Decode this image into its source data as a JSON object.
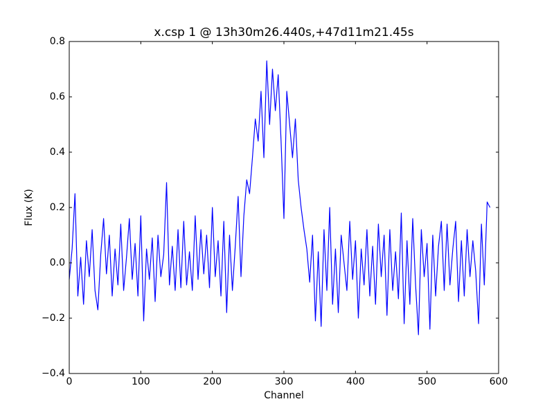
{
  "chart_data": {
    "type": "line",
    "title": "x.csp 1 @ 13h30m26.440s,+47d11m21.45s",
    "x_label": "Channel",
    "y_label": "Flux (K)",
    "xlim": [
      0,
      600
    ],
    "ylim": [
      -0.4,
      0.8
    ],
    "xticks": [
      0,
      100,
      200,
      300,
      400,
      500,
      600
    ],
    "yticks": [
      {
        "value": -0.4,
        "label": "−0.4"
      },
      {
        "value": -0.2,
        "label": "−0.2"
      },
      {
        "value": 0,
        "label": "0.0"
      },
      0.2,
      0.4,
      0.6,
      0.8
    ],
    "grid": false,
    "x": [
      0,
      4,
      8,
      12,
      16,
      20,
      24,
      28,
      32,
      36,
      40,
      44,
      48,
      52,
      56,
      60,
      64,
      68,
      72,
      76,
      80,
      84,
      88,
      92,
      96,
      100,
      104,
      108,
      112,
      116,
      120,
      124,
      128,
      132,
      136,
      140,
      144,
      148,
      152,
      156,
      160,
      164,
      168,
      172,
      176,
      180,
      184,
      188,
      192,
      196,
      200,
      204,
      208,
      212,
      216,
      220,
      224,
      228,
      232,
      236,
      240,
      244,
      248,
      252,
      256,
      260,
      264,
      268,
      272,
      276,
      280,
      284,
      288,
      292,
      296,
      300,
      304,
      308,
      312,
      316,
      320,
      324,
      328,
      332,
      336,
      340,
      344,
      348,
      352,
      356,
      360,
      364,
      368,
      372,
      376,
      380,
      384,
      388,
      392,
      396,
      400,
      404,
      408,
      412,
      416,
      420,
      424,
      428,
      432,
      436,
      440,
      444,
      448,
      452,
      456,
      460,
      464,
      468,
      472,
      476,
      480,
      484,
      488,
      492,
      496,
      500,
      504,
      508,
      512,
      516,
      520,
      524,
      528,
      532,
      536,
      540,
      544,
      548,
      552,
      556,
      560,
      564,
      568,
      572,
      576,
      580,
      584,
      588
    ],
    "series": [
      {
        "name": "x.csp 1",
        "color": "#0000ff",
        "values": [
          -0.06,
          0.05,
          0.25,
          -0.12,
          0.02,
          -0.15,
          0.08,
          -0.05,
          0.12,
          -0.1,
          -0.17,
          0.03,
          0.16,
          -0.04,
          0.1,
          -0.12,
          0.05,
          -0.08,
          0.14,
          -0.1,
          0.02,
          0.16,
          -0.06,
          0.07,
          -0.12,
          0.17,
          -0.21,
          0.05,
          -0.06,
          0.09,
          -0.14,
          0.1,
          -0.05,
          0.03,
          0.29,
          -0.08,
          0.06,
          -0.1,
          0.12,
          -0.09,
          0.15,
          -0.08,
          0.04,
          -0.1,
          0.17,
          -0.06,
          0.12,
          -0.04,
          0.1,
          -0.09,
          0.2,
          -0.05,
          0.08,
          -0.12,
          0.15,
          -0.18,
          0.1,
          -0.1,
          0.06,
          0.24,
          -0.05,
          0.17,
          0.3,
          0.25,
          0.38,
          0.52,
          0.44,
          0.62,
          0.38,
          0.73,
          0.5,
          0.7,
          0.55,
          0.68,
          0.44,
          0.16,
          0.62,
          0.5,
          0.38,
          0.52,
          0.3,
          0.2,
          0.12,
          0.05,
          -0.07,
          0.1,
          -0.21,
          0.04,
          -0.23,
          0.12,
          -0.1,
          0.2,
          -0.15,
          0.05,
          -0.18,
          0.1,
          0.0,
          -0.1,
          0.15,
          -0.06,
          0.08,
          -0.2,
          0.05,
          -0.08,
          0.12,
          -0.12,
          0.06,
          -0.15,
          0.14,
          -0.05,
          0.1,
          -0.19,
          0.12,
          -0.1,
          0.04,
          -0.13,
          0.18,
          -0.22,
          0.08,
          -0.15,
          0.16,
          -0.08,
          -0.26,
          0.12,
          -0.05,
          0.07,
          -0.24,
          0.1,
          -0.12,
          0.06,
          0.15,
          -0.1,
          0.14,
          -0.08,
          0.05,
          0.15,
          -0.14,
          0.08,
          -0.12,
          0.12,
          -0.05,
          0.08,
          -0.03,
          -0.22,
          0.14,
          -0.08,
          0.22,
          0.2
        ]
      }
    ]
  }
}
